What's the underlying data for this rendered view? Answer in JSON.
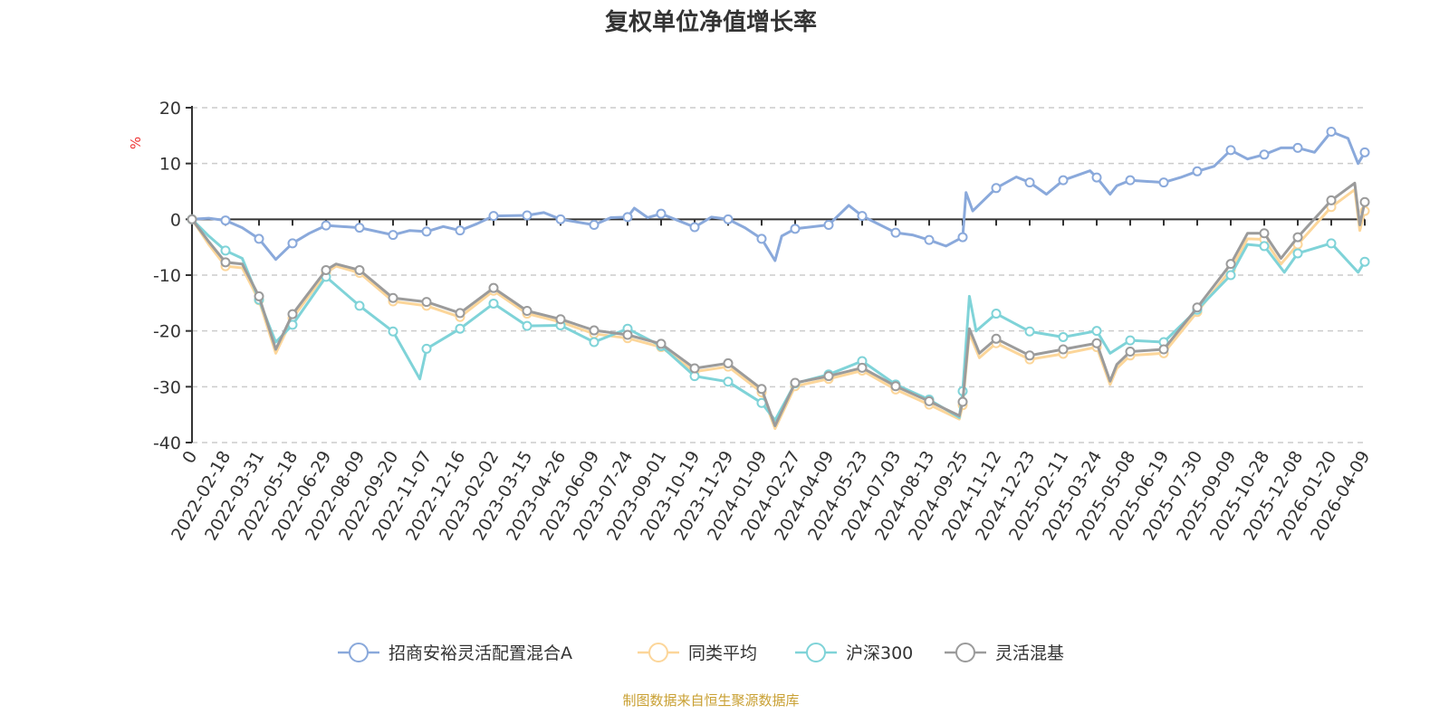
{
  "chart_data": {
    "type": "line",
    "title": "复权单位净值增长率",
    "ylabel": "%",
    "xlabel": "",
    "ylim": [
      -40,
      20
    ],
    "yticks": [
      20,
      10,
      0,
      -10,
      -20,
      -30,
      -40
    ],
    "grid": true,
    "legend_position": "bottom",
    "x_note": "x values are category indices into categories[]",
    "categories": [
      "0",
      "2022-02-18",
      "2022-03-31",
      "2022-05-18",
      "2022-06-29",
      "2022-08-09",
      "2022-09-20",
      "2022-11-07",
      "2022-12-16",
      "2023-02-02",
      "2023-03-15",
      "2023-04-26",
      "2023-06-09",
      "2023-07-24",
      "2023-09-01",
      "2023-10-19",
      "2023-11-29",
      "2024-01-09",
      "2024-02-27",
      "2024-04-09",
      "2024-05-23",
      "2024-07-03",
      "2024-08-13",
      "2024-09-25",
      "2024-11-12",
      "2024-12-23",
      "2025-02-11",
      "2025-03-24",
      "2025-05-08",
      "2025-06-19",
      "2025-07-30",
      "2025-09-09",
      "2025-10-28",
      "2025-12-08",
      "2026-01-20",
      "2026-04-09"
    ],
    "series": [
      {
        "name": "招商安裕灵活配置混合A",
        "color": "#8aa9db",
        "points": [
          [
            0,
            0
          ],
          [
            0.5,
            0.2
          ],
          [
            1,
            -0.2
          ],
          [
            1.5,
            -1.5
          ],
          [
            2,
            -3.5
          ],
          [
            2.5,
            -7.2
          ],
          [
            3,
            -4.3
          ],
          [
            3.5,
            -2.5
          ],
          [
            4,
            -1.1
          ],
          [
            5,
            -1.5
          ],
          [
            6,
            -2.8
          ],
          [
            6.5,
            -2
          ],
          [
            7,
            -2.2
          ],
          [
            7.5,
            -1.3
          ],
          [
            8,
            -2.0
          ],
          [
            8.5,
            -0.8
          ],
          [
            9,
            0.6
          ],
          [
            10,
            0.7
          ],
          [
            10.5,
            1.2
          ],
          [
            11,
            0
          ],
          [
            12,
            -1
          ],
          [
            12.5,
            0.3
          ],
          [
            13,
            0.4
          ],
          [
            13.2,
            2.0
          ],
          [
            13.6,
            0.3
          ],
          [
            14,
            1.0
          ],
          [
            15,
            -1.4
          ],
          [
            15.5,
            0.4
          ],
          [
            16,
            0
          ],
          [
            16.5,
            -1.5
          ],
          [
            17,
            -3.5
          ],
          [
            17.4,
            -7.4
          ],
          [
            17.6,
            -3
          ],
          [
            18,
            -1.7
          ],
          [
            19,
            -1.0
          ],
          [
            19.6,
            2.5
          ],
          [
            20,
            0.6
          ],
          [
            21,
            -2.4
          ],
          [
            21.5,
            -2.8
          ],
          [
            22,
            -3.7
          ],
          [
            22.5,
            -4.8
          ],
          [
            23,
            -3.2
          ],
          [
            23.1,
            4.8
          ],
          [
            23.3,
            1.5
          ],
          [
            24,
            5.6
          ],
          [
            24.6,
            7.6
          ],
          [
            25,
            6.6
          ],
          [
            25.5,
            4.5
          ],
          [
            26,
            7.0
          ],
          [
            26.8,
            8.7
          ],
          [
            27,
            7.5
          ],
          [
            27.4,
            4.5
          ],
          [
            27.6,
            6
          ],
          [
            28,
            7.0
          ],
          [
            29,
            6.6
          ],
          [
            29.5,
            7.5
          ],
          [
            30,
            8.6
          ],
          [
            30.5,
            9.5
          ],
          [
            31,
            12.4
          ],
          [
            31.5,
            10.8
          ],
          [
            32,
            11.6
          ],
          [
            32.5,
            12.8
          ],
          [
            33,
            12.8
          ],
          [
            33.5,
            12.0
          ],
          [
            34,
            15.7
          ],
          [
            34.5,
            14.5
          ],
          [
            34.8,
            10
          ],
          [
            35,
            12.0
          ]
        ]
      },
      {
        "name": "同类平均",
        "color": "#fcd69a",
        "points": [
          [
            0,
            0
          ],
          [
            0.5,
            -4.5
          ],
          [
            1,
            -8.4
          ],
          [
            1.5,
            -8.7
          ],
          [
            2,
            -14.5
          ],
          [
            2.5,
            -24
          ],
          [
            3,
            -17.7
          ],
          [
            4,
            -9.6
          ],
          [
            4.3,
            -8.4
          ],
          [
            5,
            -9.6
          ],
          [
            6,
            -14.7
          ],
          [
            7,
            -15.5
          ],
          [
            8,
            -17.5
          ],
          [
            9,
            -12.8
          ],
          [
            10,
            -16.9
          ],
          [
            11,
            -18.4
          ],
          [
            12,
            -20.5
          ],
          [
            13,
            -21.3
          ],
          [
            14,
            -22.9
          ],
          [
            15,
            -27.3
          ],
          [
            16,
            -26.4
          ],
          [
            17,
            -31
          ],
          [
            17.4,
            -37.5
          ],
          [
            18,
            -29.9
          ],
          [
            19,
            -28.6
          ],
          [
            20,
            -27.1
          ],
          [
            21,
            -30.5
          ],
          [
            22,
            -33.2
          ],
          [
            22.9,
            -35.8
          ],
          [
            23,
            -33.3
          ],
          [
            23.2,
            -20.4
          ],
          [
            23.5,
            -24.8
          ],
          [
            24,
            -22.2
          ],
          [
            25,
            -25.1
          ],
          [
            26,
            -24.1
          ],
          [
            27,
            -22.9
          ],
          [
            27.4,
            -29.6
          ],
          [
            27.6,
            -26.7
          ],
          [
            28,
            -24.4
          ],
          [
            29,
            -24
          ],
          [
            30,
            -16.6
          ],
          [
            31,
            -9.0
          ],
          [
            31.5,
            -3.5
          ],
          [
            32,
            -3.6
          ],
          [
            32.5,
            -8
          ],
          [
            33,
            -4.5
          ],
          [
            34,
            2.2
          ],
          [
            34.7,
            5.3
          ],
          [
            34.85,
            -2
          ],
          [
            35,
            1.5
          ]
        ]
      },
      {
        "name": "沪深300",
        "color": "#7fd3d8",
        "points": [
          [
            0,
            0
          ],
          [
            0.5,
            -3
          ],
          [
            1,
            -5.6
          ],
          [
            1.5,
            -7
          ],
          [
            2,
            -14.4
          ],
          [
            2.3,
            -19
          ],
          [
            2.5,
            -22
          ],
          [
            3,
            -18.9
          ],
          [
            4,
            -10.3
          ],
          [
            5,
            -15.5
          ],
          [
            6,
            -20.1
          ],
          [
            6.8,
            -28.6
          ],
          [
            7,
            -23.2
          ],
          [
            8,
            -19.6
          ],
          [
            9,
            -15.1
          ],
          [
            10,
            -19.1
          ],
          [
            11,
            -19.0
          ],
          [
            12,
            -22.0
          ],
          [
            13,
            -19.6
          ],
          [
            14,
            -22.7
          ],
          [
            15,
            -28.1
          ],
          [
            16,
            -29.1
          ],
          [
            17,
            -32.9
          ],
          [
            17.4,
            -36
          ],
          [
            18,
            -29.4
          ],
          [
            19,
            -27.8
          ],
          [
            20,
            -25.4
          ],
          [
            21,
            -29.6
          ],
          [
            22,
            -32.3
          ],
          [
            22.9,
            -35.5
          ],
          [
            23,
            -30.8
          ],
          [
            23.2,
            -13.8
          ],
          [
            23.4,
            -20
          ],
          [
            24,
            -16.9
          ],
          [
            25,
            -20.1
          ],
          [
            26,
            -21.1
          ],
          [
            27,
            -20.0
          ],
          [
            27.4,
            -24
          ],
          [
            28,
            -21.7
          ],
          [
            29,
            -22.0
          ],
          [
            30,
            -16.2
          ],
          [
            31,
            -10.0
          ],
          [
            31.5,
            -4.5
          ],
          [
            32,
            -4.8
          ],
          [
            32.6,
            -9.5
          ],
          [
            33,
            -6.1
          ],
          [
            34,
            -4.3
          ],
          [
            34.8,
            -9.5
          ],
          [
            35,
            -7.6
          ]
        ]
      },
      {
        "name": "灵活混基",
        "color": "#9b9b9b",
        "points": [
          [
            0,
            0
          ],
          [
            0.5,
            -4
          ],
          [
            1,
            -7.7
          ],
          [
            1.5,
            -8
          ],
          [
            2,
            -13.8
          ],
          [
            2.5,
            -23.3
          ],
          [
            3,
            -17
          ],
          [
            4,
            -9.1
          ],
          [
            4.3,
            -8
          ],
          [
            5,
            -9.1
          ],
          [
            6,
            -14.1
          ],
          [
            7,
            -14.8
          ],
          [
            8,
            -16.8
          ],
          [
            9,
            -12.3
          ],
          [
            10,
            -16.4
          ],
          [
            11,
            -17.9
          ],
          [
            12,
            -19.9
          ],
          [
            13,
            -20.7
          ],
          [
            14,
            -22.3
          ],
          [
            15,
            -26.7
          ],
          [
            16,
            -25.8
          ],
          [
            17,
            -30.4
          ],
          [
            17.4,
            -37
          ],
          [
            18,
            -29.3
          ],
          [
            19,
            -28.1
          ],
          [
            20,
            -26.6
          ],
          [
            21,
            -29.9
          ],
          [
            22,
            -32.6
          ],
          [
            22.9,
            -35.2
          ],
          [
            23,
            -32.7
          ],
          [
            23.2,
            -19.6
          ],
          [
            23.5,
            -24
          ],
          [
            24,
            -21.4
          ],
          [
            25,
            -24.4
          ],
          [
            26,
            -23.3
          ],
          [
            27,
            -22.2
          ],
          [
            27.4,
            -29
          ],
          [
            27.6,
            -26
          ],
          [
            28,
            -23.7
          ],
          [
            29,
            -23.3
          ],
          [
            30,
            -15.8
          ],
          [
            31,
            -8.0
          ],
          [
            31.5,
            -2.5
          ],
          [
            32,
            -2.5
          ],
          [
            32.5,
            -7
          ],
          [
            33,
            -3.2
          ],
          [
            34,
            3.4
          ],
          [
            34.7,
            6.5
          ],
          [
            34.85,
            -1
          ],
          [
            35,
            3.1
          ]
        ]
      }
    ]
  },
  "source_note": "制图数据来自恒生聚源数据库"
}
